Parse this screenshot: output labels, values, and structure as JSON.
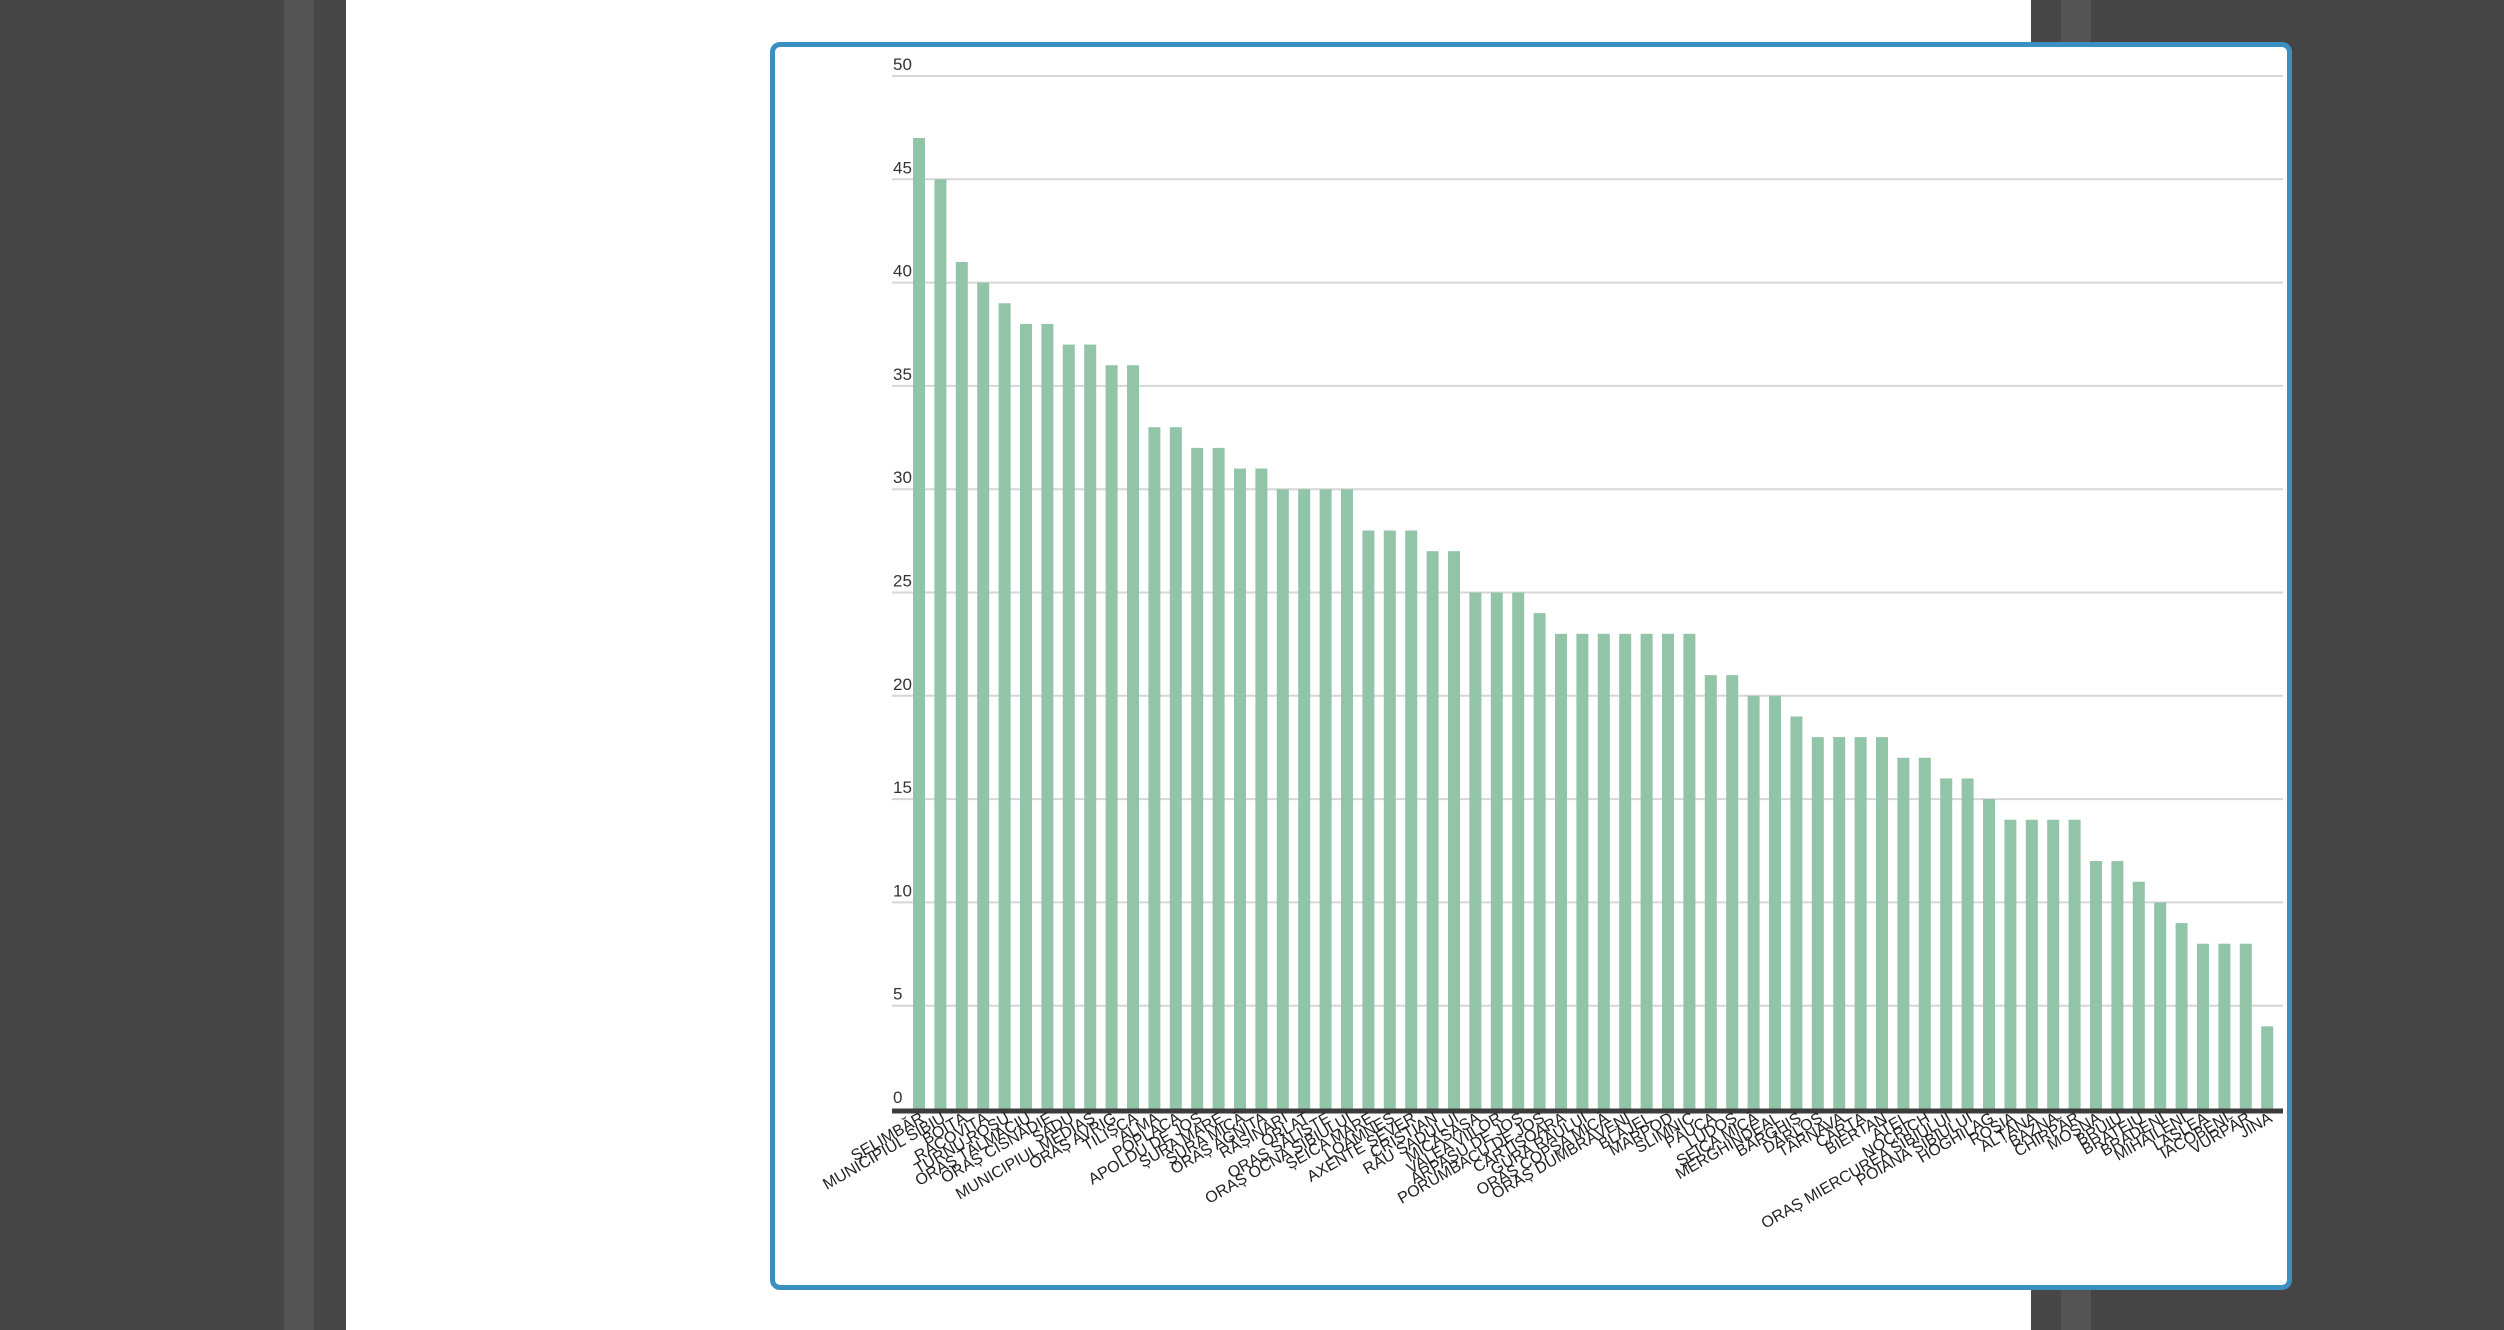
{
  "colors": {
    "bar": "#92c4a8",
    "grid": "#d6d6d6",
    "baseline": "#3c3c3c",
    "frame": "#3a8fc0"
  },
  "chart_data": {
    "type": "bar",
    "title": "",
    "xlabel": "",
    "ylabel": "",
    "ylim": [
      0,
      50
    ],
    "yticks": [
      0,
      5,
      10,
      15,
      20,
      25,
      30,
      35,
      40,
      45,
      50
    ],
    "grid": true,
    "categories": [
      "ȘELIMBĂR",
      "MUNICIPIUL SIBIU",
      "BOIȚA",
      "RACOVIȚA",
      "TURNU ROȘU",
      "ORAȘ TĂLMACIU",
      "ORAȘ CISNĂDIE",
      "SADU",
      "MUNICIPIUL MEDIAȘ",
      "ORAȘ AVRIG",
      "TILIȘCA",
      "ALMA",
      "POPLACA",
      "APOLDU DE JOS",
      "ȘURA MARE",
      "ȘURA MICĂ",
      "ORAȘ AGNITA",
      "RĂȘINARI",
      "ORLAT",
      "ORAȘ SĂLIȘTE",
      "ORAȘ OCNA SIBIULUI",
      "ȘEICA MARE",
      "LOAMNEȘ",
      "AXENTE SEVER",
      "CRISTIAN",
      "RĂU SADULUI",
      "MICĂSASA",
      "VALEA VIILOR",
      "ARPAȘU DE JOS",
      "PORUMBACU DE JOS",
      "CÂRȚIȘOARA",
      "GURA RÂULUI",
      "ORAȘ COPȘA MICĂ",
      "ORAȘ DUMBRĂVENI",
      "BLĂJEL",
      "MARPOD",
      "SLIMNIC",
      "PĂUCA",
      "LUDOȘ",
      "ȘEICA MICĂ",
      "MERGHINDEAL",
      "BÂRGHIȘ",
      "DÂRLOS",
      "TÂRNAVA",
      "CÂRȚA",
      "BIERTAN",
      "ATEL",
      "NOCRICH",
      "ORAȘ MIERCUREA SIBIULUI",
      "POIANA SIBIULUI",
      "HOGHILAG",
      "ROȘIA",
      "ALȚÂNA",
      "BAZNA",
      "CHIRPĂR",
      "MOȘNA",
      "BRUIU",
      "BRATEIU",
      "BRADENI",
      "MIHĂILENI",
      "LASLEA",
      "IACOBENI",
      "VURPĂR",
      "JINA"
    ],
    "values": [
      47,
      45,
      41,
      40,
      39,
      38,
      38,
      37,
      37,
      36,
      36,
      33,
      33,
      32,
      32,
      31,
      31,
      30,
      30,
      30,
      30,
      28,
      28,
      28,
      27,
      27,
      25,
      25,
      25,
      24,
      23,
      23,
      23,
      23,
      23,
      23,
      23,
      21,
      21,
      20,
      20,
      19,
      18,
      18,
      18,
      18,
      17,
      17,
      16,
      16,
      15,
      14,
      14,
      14,
      14,
      12,
      12,
      11,
      10,
      9,
      8,
      8,
      8,
      4
    ]
  }
}
